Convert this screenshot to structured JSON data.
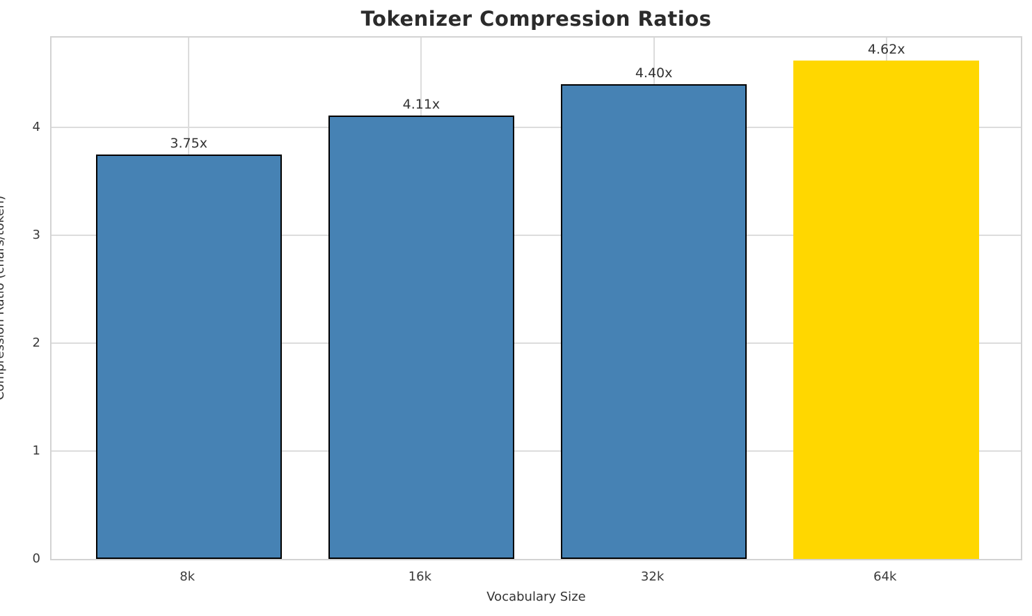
{
  "chart_data": {
    "type": "bar",
    "title": "Tokenizer Compression Ratios",
    "xlabel": "Vocabulary Size",
    "ylabel": "Compression Ratio (chars/token)",
    "categories": [
      "8k",
      "16k",
      "32k",
      "64k"
    ],
    "values": [
      3.75,
      4.11,
      4.4,
      4.62
    ],
    "bar_labels": [
      "3.75x",
      "4.11x",
      "4.40x",
      "4.62x"
    ],
    "bar_colors": [
      "#4682B4",
      "#4682B4",
      "#4682B4",
      "#FFD700"
    ],
    "bar_edge_colors": [
      "#000000",
      "#000000",
      "#000000",
      "none"
    ],
    "base_color": "#4682B4",
    "highlight_color": "#FFD700",
    "grid": true,
    "legend": "none",
    "ylim": [
      0,
      4.86
    ],
    "xlim": [
      -0.59,
      3.59
    ],
    "bar_width": 0.8,
    "yticks": [
      0,
      1,
      2,
      3,
      4
    ],
    "ytick_labels": [
      "0",
      "1",
      "2",
      "3",
      "4"
    ]
  }
}
